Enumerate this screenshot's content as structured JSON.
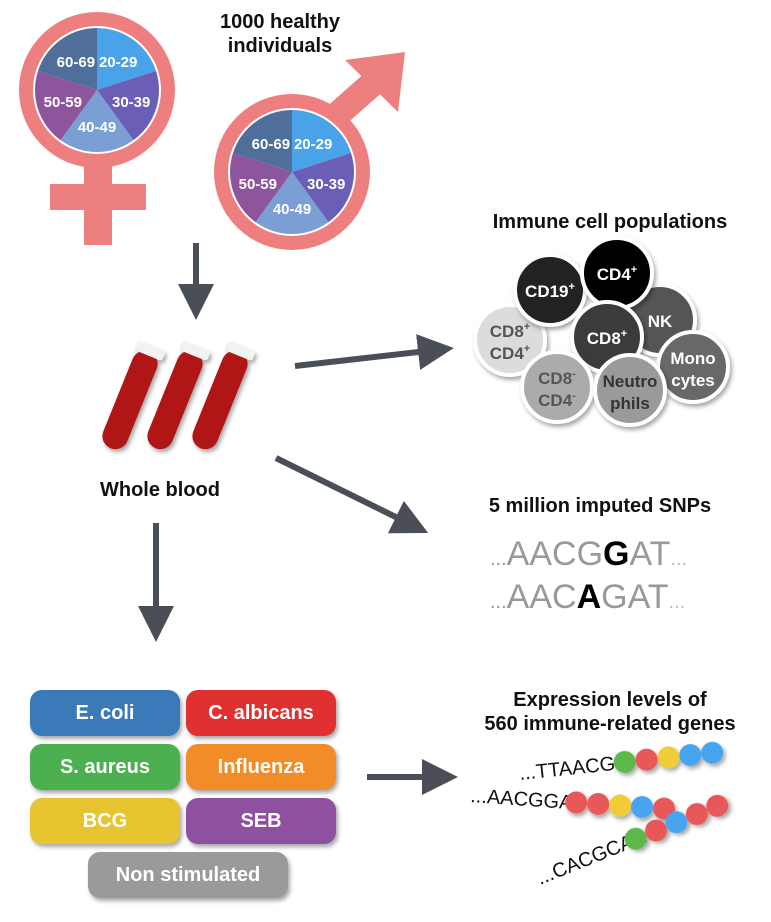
{
  "cohort": {
    "title_line1": "1000 healthy",
    "title_line2": "individuals",
    "age_groups": [
      "20-29",
      "30-39",
      "40-49",
      "50-59",
      "60-69"
    ],
    "age_colors": [
      "#4aa3e8",
      "#6a5fb5",
      "#7b9fd4",
      "#8c559c",
      "#4f6e9a"
    ],
    "symbol_color": "#ee7f7f"
  },
  "blood": {
    "label": "Whole blood"
  },
  "cells": {
    "title": "Immune cell populations",
    "items": [
      {
        "l1": "CD8",
        "s1": "+",
        "l2": "CD4",
        "s2": "+",
        "color": "#dcdcdc",
        "text": "#555"
      },
      {
        "l1": "CD19",
        "s1": "+",
        "l2": "",
        "s2": "",
        "color": "#222",
        "text": "#fff"
      },
      {
        "l1": "NK",
        "s1": "",
        "l2": "",
        "s2": "",
        "color": "#555",
        "text": "#fff"
      },
      {
        "l1": "CD4",
        "s1": "+",
        "l2": "",
        "s2": "",
        "color": "#000",
        "text": "#fff"
      },
      {
        "l1": "CD8",
        "s1": "+",
        "l2": "",
        "s2": "",
        "color": "#3a3a3a",
        "text": "#fff"
      },
      {
        "l1": "Mono",
        "s1": "",
        "l2": "cytes",
        "s2": "",
        "color": "#686868",
        "text": "#fff"
      },
      {
        "l1": "CD8",
        "s1": "-",
        "l2": "CD4",
        "s2": "-",
        "color": "#ababab",
        "text": "#555"
      },
      {
        "l1": "Neutro",
        "s1": "",
        "l2": "phils",
        "s2": "",
        "color": "#9a9a9a",
        "text": "#333"
      }
    ]
  },
  "snps": {
    "title": "5 million imputed SNPs",
    "seq1": {
      "pre": "AACG",
      "allele": "G",
      "post": "AT"
    },
    "seq2": {
      "pre": "AAC",
      "allele": "A",
      "post": "GAT"
    },
    "dots": "..."
  },
  "stimuli": [
    {
      "label": "E. coli",
      "color": "#3a7ab8"
    },
    {
      "label": "C. albicans",
      "color": "#e03030"
    },
    {
      "label": "S. aureus",
      "color": "#4cb050"
    },
    {
      "label": "Influenza",
      "color": "#f28c28"
    },
    {
      "label": "BCG",
      "color": "#e8c430"
    },
    {
      "label": "SEB",
      "color": "#9050a0"
    },
    {
      "label": "Non stimulated",
      "color": "#9a9a9a"
    }
  ],
  "expression": {
    "title_line1": "Expression levels of",
    "title_line2": "560 immune-related genes",
    "seqs": [
      "...TTAACGG",
      "...AACGGAT",
      "...CACGCAA"
    ]
  },
  "arrow_color": "#4a4f57"
}
